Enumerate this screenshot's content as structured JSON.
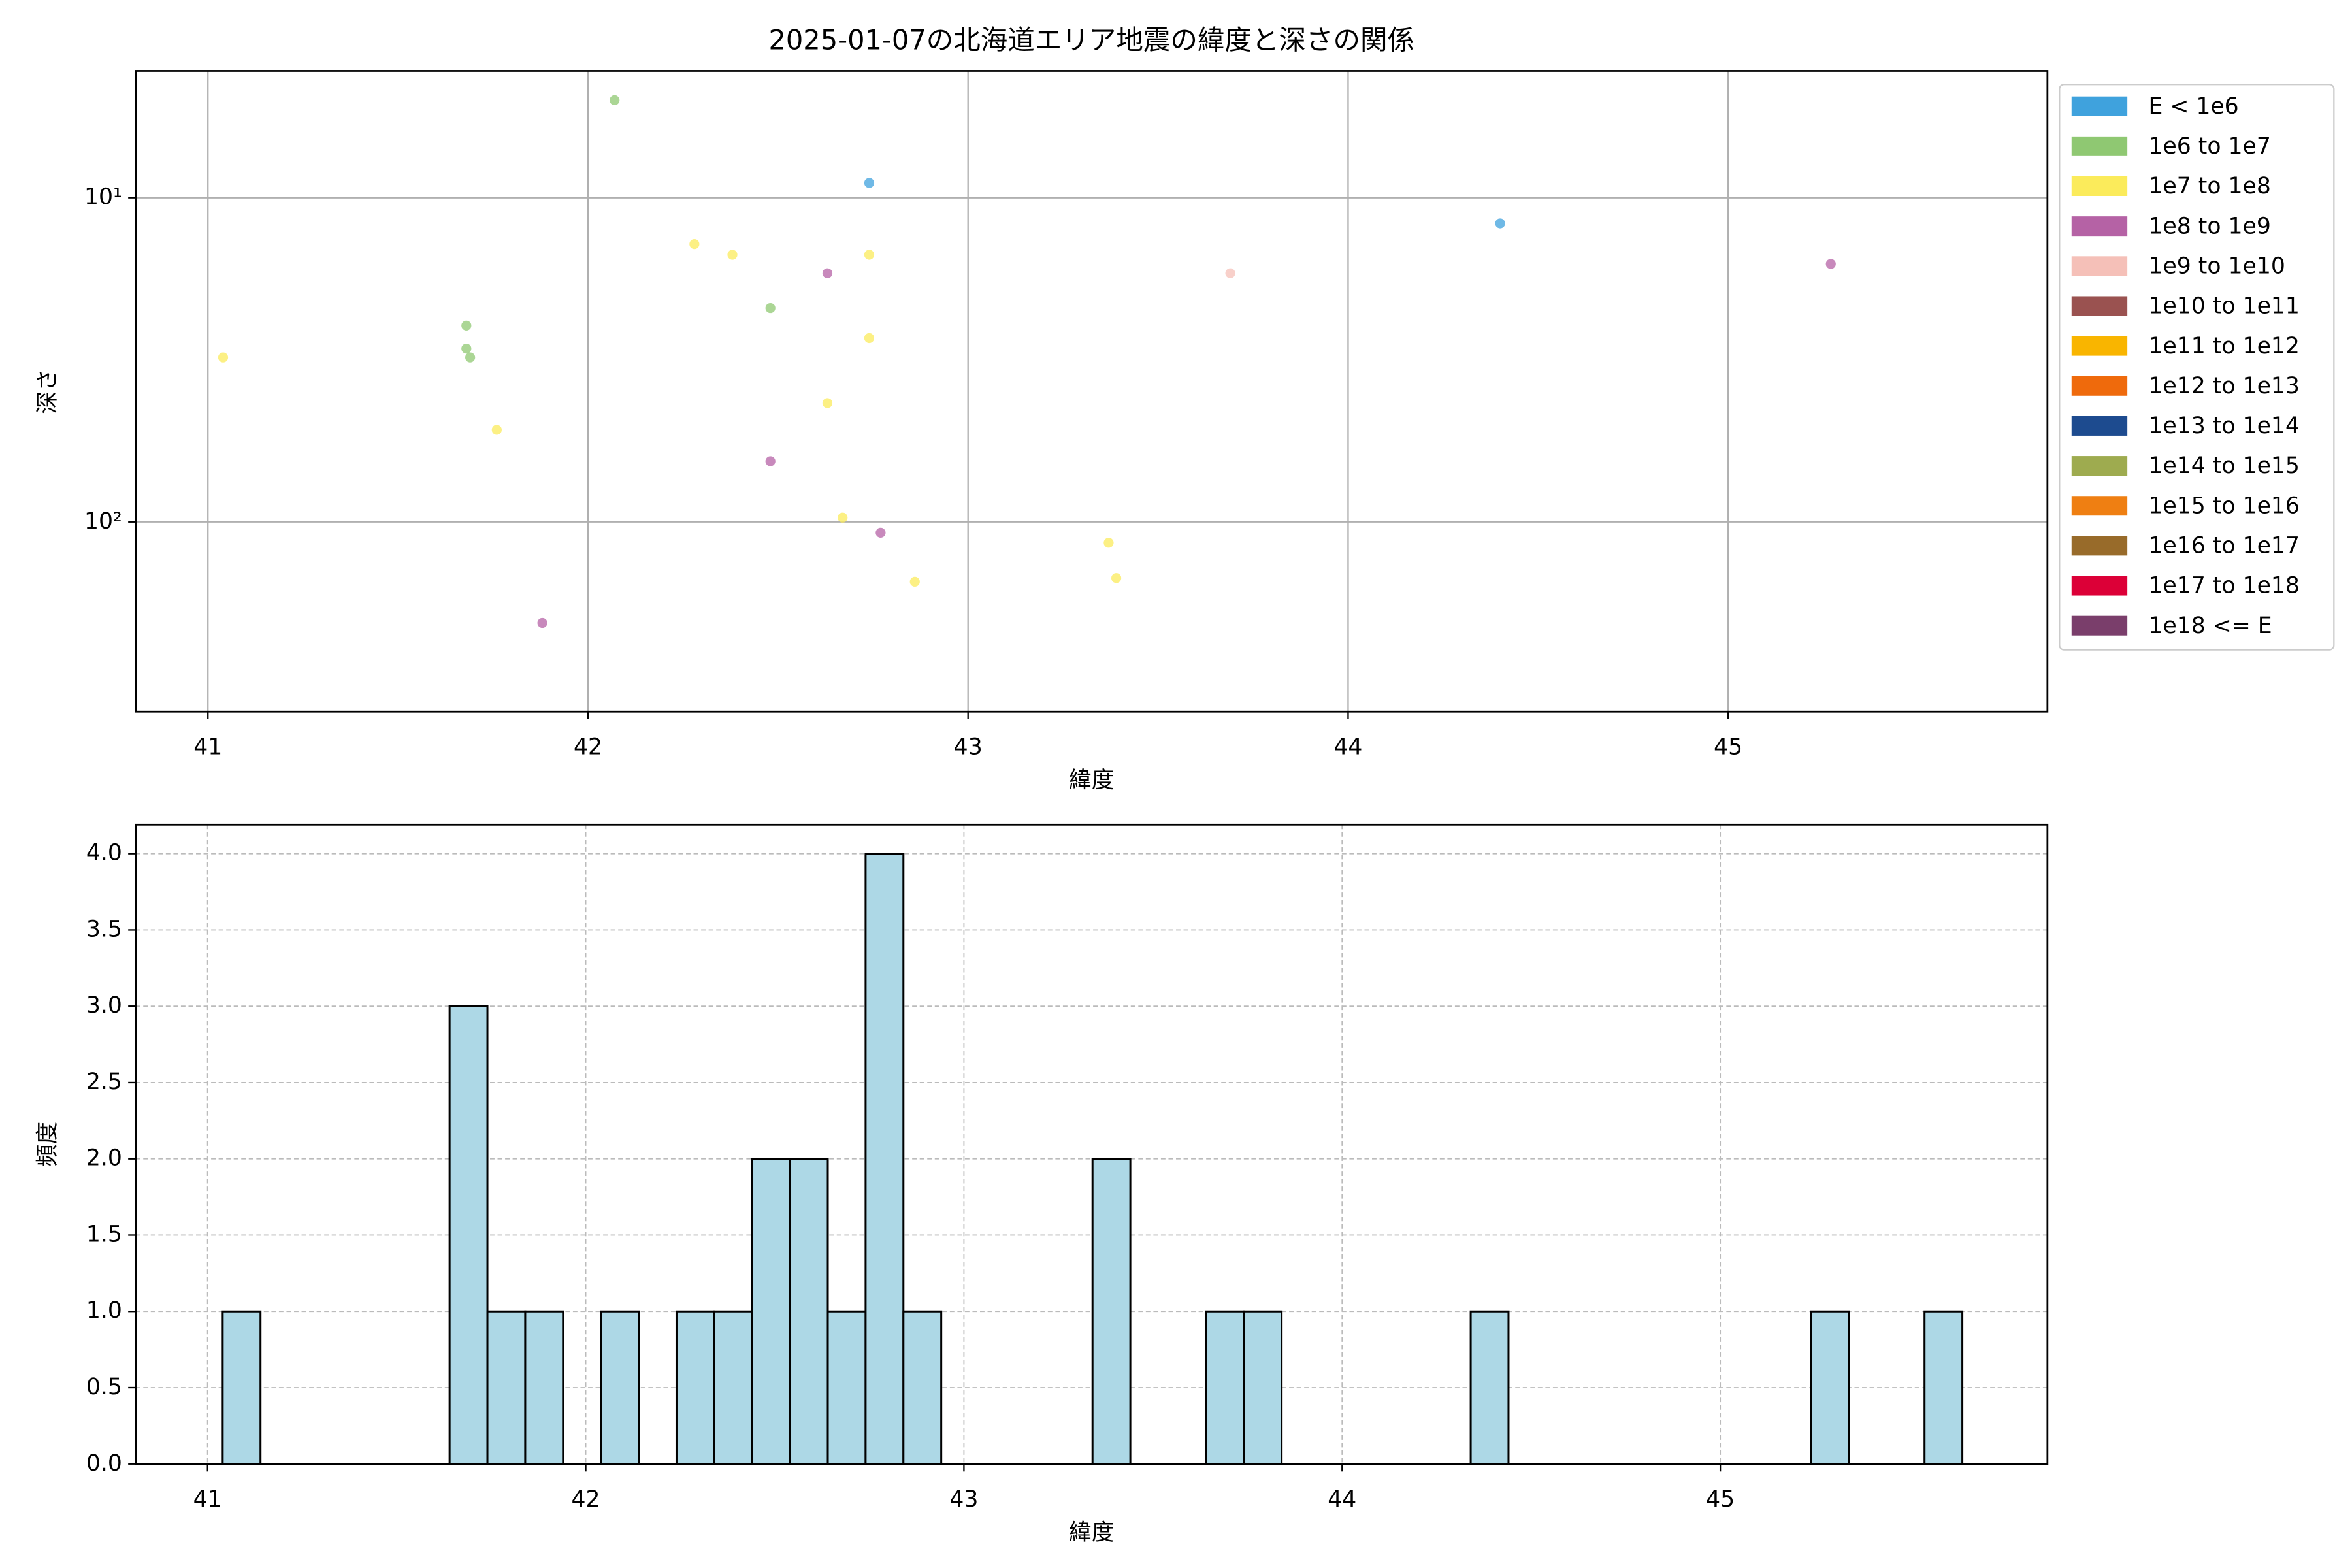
{
  "chart_data": [
    {
      "type": "scatter",
      "title": "2025-01-07の北海道エリア地震の緯度と深さの関係",
      "xlabel": "緯度",
      "ylabel": "深さ",
      "xlim": [
        40.81,
        45.84
      ],
      "xticks": [
        41,
        42,
        43,
        44,
        45
      ],
      "yscale": "log",
      "ylim": [
        385,
        4.06
      ],
      "yticks": [
        {
          "value": 10,
          "label": "10¹"
        },
        {
          "value": 100,
          "label": "10²"
        }
      ],
      "grid": true,
      "legend": "outside-right",
      "series": [
        {
          "name": "E < 1e6",
          "color": "#3fa2dd",
          "x": [
            42.74,
            44.4
          ],
          "values": [
            9.0,
            12.0
          ]
        },
        {
          "name": "1e6 to 1e7",
          "color": "#8fc872",
          "x": [
            41.68,
            41.68,
            41.69,
            42.07,
            42.48
          ],
          "values": [
            24.8,
            29.2,
            31.1,
            5.0,
            21.9
          ]
        },
        {
          "name": "1e7 to 1e8",
          "color": "#fbeb5b",
          "x": [
            41.04,
            41.76,
            42.28,
            42.38,
            42.63,
            42.67,
            42.74,
            42.74,
            42.86,
            43.37,
            43.39
          ],
          "values": [
            31.1,
            52,
            13.9,
            15.0,
            43,
            97,
            15.0,
            27.1,
            153,
            116,
            149
          ]
        },
        {
          "name": "1e8 to 1e9",
          "color": "#b562a5",
          "x": [
            41.88,
            42.48,
            42.63,
            42.77,
            45.27
          ],
          "values": [
            205,
            65,
            17.1,
            108,
            16.0
          ]
        },
        {
          "name": "1e9 to 1e10",
          "color": "#f5c0b8",
          "x": [
            43.69
          ],
          "values": [
            17.1
          ]
        },
        {
          "name": "1e10 to 1e11",
          "color": "#9a5250",
          "x": [],
          "values": []
        },
        {
          "name": "1e11 to 1e12",
          "color": "#f9b500",
          "x": [],
          "values": []
        },
        {
          "name": "1e12 to 1e13",
          "color": "#ef6a0c",
          "x": [],
          "values": []
        },
        {
          "name": "1e13 to 1e14",
          "color": "#1d4b8f",
          "x": [],
          "values": []
        },
        {
          "name": "1e14 to 1e15",
          "color": "#9eab4f",
          "x": [],
          "values": []
        },
        {
          "name": "1e15 to 1e16",
          "color": "#ef7f12",
          "x": [],
          "values": []
        },
        {
          "name": "1e16 to 1e17",
          "color": "#986b2a",
          "x": [],
          "values": []
        },
        {
          "name": "1e17 to 1e18",
          "color": "#dc0037",
          "x": [],
          "values": []
        },
        {
          "name": "1e18 <= E",
          "color": "#7a3e6b",
          "x": [],
          "values": []
        }
      ]
    },
    {
      "type": "histogram",
      "xlabel": "緯度",
      "ylabel": "頻度",
      "xlim": [
        40.81,
        45.865
      ],
      "xticks": [
        41,
        42,
        43,
        44,
        45
      ],
      "ylim": [
        0,
        4.19
      ],
      "yticks": [
        {
          "value": 0,
          "label": "0.0"
        },
        {
          "value": 0.5,
          "label": "0.5"
        },
        {
          "value": 1,
          "label": "1.0"
        },
        {
          "value": 1.5,
          "label": "1.5"
        },
        {
          "value": 2,
          "label": "2.0"
        },
        {
          "value": 2.5,
          "label": "2.5"
        },
        {
          "value": 3,
          "label": "3.0"
        },
        {
          "value": 3.5,
          "label": "3.5"
        },
        {
          "value": 4,
          "label": "4.0"
        }
      ],
      "grid": "dashed",
      "color": "#add8e6",
      "edgecolor": "#000000",
      "bins": [
        41.04,
        41.14,
        41.24,
        41.34,
        41.44,
        41.54,
        41.64,
        41.74,
        41.84,
        41.94,
        42.04,
        42.14,
        42.24,
        42.34,
        42.44,
        42.54,
        42.64,
        42.74,
        42.84,
        42.94,
        43.04,
        43.14,
        43.24,
        43.34,
        43.44,
        43.54,
        43.64,
        43.74,
        43.84,
        43.94,
        44.04,
        44.14,
        44.24,
        44.34,
        44.44,
        44.54,
        44.64,
        44.74,
        44.84,
        44.94,
        45.04,
        45.14,
        45.24,
        45.34,
        45.44,
        45.54,
        45.64
      ],
      "values": [
        1,
        0,
        0,
        0,
        0,
        0,
        3,
        1,
        1,
        0,
        1,
        0,
        1,
        1,
        2,
        2,
        1,
        4,
        1,
        0,
        0,
        0,
        0,
        2,
        0,
        0,
        1,
        1,
        0,
        0,
        0,
        0,
        0,
        1,
        0,
        0,
        0,
        0,
        0,
        0,
        0,
        0,
        1,
        0,
        0,
        1
      ]
    }
  ]
}
